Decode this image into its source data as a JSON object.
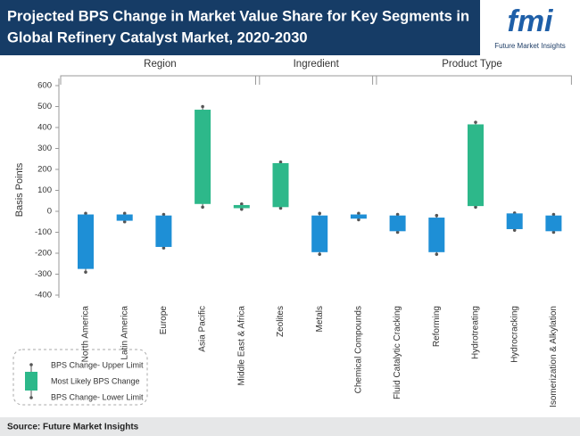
{
  "header": {
    "title_lines": [
      "Projected BPS Change in Market Value Share for Key Segments in",
      "Global Refinery Catalyst Market, 2020-2030"
    ],
    "logo": {
      "mark": "fmi",
      "name": "Future Market Insights"
    }
  },
  "chart_data": {
    "type": "range_bar",
    "ylabel": "Basis Points",
    "ylim": [
      -400,
      600
    ],
    "yticks": [
      -400,
      -300,
      -200,
      -100,
      0,
      100,
      200,
      300,
      400,
      500,
      600
    ],
    "positive_color": "#2db88a",
    "negative_color": "#1e8fd6",
    "groups": [
      {
        "name": "Region",
        "categories": [
          "North America",
          "Latin America",
          "Europe",
          "Asia Pacific",
          "Middle East & Africa"
        ]
      },
      {
        "name": "Ingredient",
        "categories": [
          "Zeolites",
          "Metals",
          "Chemical Compounds"
        ]
      },
      {
        "name": "Product Type",
        "categories": [
          "Fluid Catalytic Cracking",
          "Reforming",
          "Hydrotreating",
          "Hydrocracking",
          "Isomerization & Alkylation"
        ]
      }
    ],
    "series": [
      {
        "name": "BPS Change- Upper Limit",
        "values": [
          -10,
          -10,
          -15,
          500,
          35,
          235,
          -10,
          -10,
          -15,
          -20,
          425,
          -8,
          -15
        ]
      },
      {
        "name": "Most Likely BPS Change",
        "values": [
          [
            -15,
            -275
          ],
          [
            -15,
            -45
          ],
          [
            -20,
            -170
          ],
          [
            35,
            485
          ],
          [
            15,
            30
          ],
          [
            20,
            230
          ],
          [
            -20,
            -195
          ],
          [
            -15,
            -35
          ],
          [
            -20,
            -95
          ],
          [
            -30,
            -195
          ],
          [
            25,
            415
          ],
          [
            -10,
            -85
          ],
          [
            -20,
            -95
          ]
        ]
      },
      {
        "name": "BPS Change- Lower Limit",
        "values": [
          -290,
          -50,
          -175,
          20,
          10,
          15,
          -205,
          -40,
          -100,
          -205,
          20,
          -90,
          -100
        ]
      }
    ]
  },
  "footer": {
    "source": "Source: Future Market Insights"
  }
}
